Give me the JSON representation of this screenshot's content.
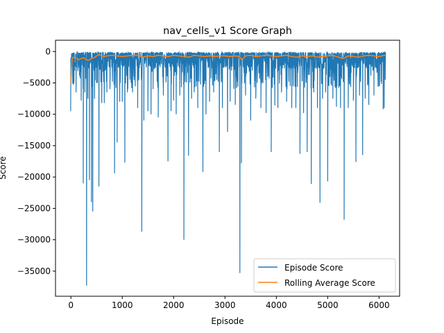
{
  "chart_data": {
    "type": "line",
    "title": "nav_cells_v1 Score Graph",
    "xlabel": "Episode",
    "ylabel": "Score",
    "xlim": [
      -300,
      6400
    ],
    "ylim": [
      -39000,
      1800
    ],
    "xticks": [
      0,
      1000,
      2000,
      3000,
      4000,
      5000,
      6000
    ],
    "yticks": [
      0,
      -5000,
      -10000,
      -15000,
      -20000,
      -25000,
      -30000,
      -35000
    ],
    "grid": false,
    "legend_position": "lower-right",
    "episode_count": 6130,
    "series": [
      {
        "name": "Episode Score",
        "color": "#1f77b4",
        "baseline": -100,
        "typical_low": -5500,
        "spikes": [
          [
            -5,
            -9500
          ],
          [
            60,
            -5000
          ],
          [
            100,
            -6500
          ],
          [
            150,
            -2000
          ],
          [
            200,
            -7800
          ],
          [
            240,
            -21000
          ],
          [
            270,
            -6500
          ],
          [
            305,
            -37300
          ],
          [
            330,
            -7500
          ],
          [
            360,
            -20500
          ],
          [
            400,
            -24000
          ],
          [
            425,
            -25500
          ],
          [
            460,
            -7500
          ],
          [
            500,
            -5000
          ],
          [
            545,
            -21500
          ],
          [
            600,
            -8200
          ],
          [
            650,
            -8200
          ],
          [
            700,
            -6500
          ],
          [
            760,
            -6000
          ],
          [
            850,
            -19400
          ],
          [
            900,
            -14500
          ],
          [
            950,
            -8000
          ],
          [
            1000,
            -8000
          ],
          [
            1050,
            -17700
          ],
          [
            1100,
            -6500
          ],
          [
            1200,
            -6500
          ],
          [
            1300,
            -9000
          ],
          [
            1380,
            -28700
          ],
          [
            1420,
            -11000
          ],
          [
            1500,
            -9500
          ],
          [
            1560,
            -10000
          ],
          [
            1600,
            -6000
          ],
          [
            1700,
            -10500
          ],
          [
            1800,
            -7000
          ],
          [
            1890,
            -17500
          ],
          [
            1950,
            -9500
          ],
          [
            2000,
            -7800
          ],
          [
            2050,
            -10000
          ],
          [
            2120,
            -7000
          ],
          [
            2200,
            -30000
          ],
          [
            2290,
            -16600
          ],
          [
            2350,
            -7500
          ],
          [
            2400,
            -6500
          ],
          [
            2470,
            -9000
          ],
          [
            2570,
            -19200
          ],
          [
            2630,
            -10000
          ],
          [
            2700,
            -8000
          ],
          [
            2780,
            -6500
          ],
          [
            2890,
            -16000
          ],
          [
            2950,
            -9000
          ],
          [
            3050,
            -12800
          ],
          [
            3100,
            -8000
          ],
          [
            3200,
            -8500
          ],
          [
            3290,
            -35300
          ],
          [
            3320,
            -17800
          ],
          [
            3400,
            -7000
          ],
          [
            3500,
            -11000
          ],
          [
            3600,
            -7500
          ],
          [
            3700,
            -9000
          ],
          [
            3800,
            -9800
          ],
          [
            3900,
            -16000
          ],
          [
            3970,
            -8600
          ],
          [
            4030,
            -9000
          ],
          [
            4100,
            -6500
          ],
          [
            4200,
            -8000
          ],
          [
            4300,
            -9000
          ],
          [
            4380,
            -9000
          ],
          [
            4460,
            -16300
          ],
          [
            4530,
            -9800
          ],
          [
            4600,
            -16000
          ],
          [
            4680,
            -21100
          ],
          [
            4730,
            -6500
          ],
          [
            4800,
            -9000
          ],
          [
            4850,
            -24100
          ],
          [
            4900,
            -7500
          ],
          [
            4960,
            -6500
          ],
          [
            5000,
            -20700
          ],
          [
            5100,
            -7500
          ],
          [
            5170,
            -8800
          ],
          [
            5250,
            -9000
          ],
          [
            5320,
            -26800
          ],
          [
            5400,
            -9000
          ],
          [
            5500,
            -7800
          ],
          [
            5550,
            -17600
          ],
          [
            5620,
            -7000
          ],
          [
            5680,
            -16500
          ],
          [
            5730,
            -7500
          ],
          [
            5800,
            -8500
          ],
          [
            5900,
            -7000
          ],
          [
            6000,
            -5500
          ],
          [
            6080,
            -9200
          ],
          [
            6100,
            -9000
          ],
          [
            6120,
            -4500
          ]
        ]
      },
      {
        "name": "Rolling Average Score",
        "color": "#ff7f0e",
        "x": [
          0,
          10,
          25,
          50,
          100,
          150,
          200,
          250,
          300,
          350,
          400,
          450,
          500,
          550,
          600,
          650,
          700,
          800,
          900,
          1000,
          1100,
          1200,
          1300,
          1400,
          1500,
          1600,
          1700,
          1800,
          1900,
          2000,
          2100,
          2200,
          2300,
          2400,
          2500,
          2600,
          2700,
          2800,
          2900,
          3000,
          3100,
          3200,
          3280,
          3330,
          3400,
          3500,
          3600,
          3700,
          3800,
          3900,
          4000,
          4100,
          4200,
          4300,
          4400,
          4500,
          4600,
          4700,
          4800,
          4900,
          5000,
          5100,
          5200,
          5300,
          5400,
          5500,
          5600,
          5700,
          5800,
          5900,
          6000,
          6100,
          6130
        ],
        "values": [
          -5000,
          -2800,
          -1000,
          -900,
          -1000,
          -1300,
          -1100,
          -1000,
          -1300,
          -1400,
          -1100,
          -1000,
          -700,
          -500,
          -700,
          -800,
          -700,
          -600,
          -700,
          -800,
          -700,
          -600,
          -600,
          -900,
          -700,
          -800,
          -600,
          -700,
          -800,
          -600,
          -700,
          -800,
          -900,
          -600,
          -700,
          -800,
          -700,
          -800,
          -700,
          -700,
          -800,
          -700,
          -800,
          -1300,
          -700,
          -600,
          -800,
          -700,
          -600,
          -700,
          -800,
          -700,
          -600,
          -800,
          -900,
          -700,
          -800,
          -700,
          -900,
          -800,
          -700,
          -600,
          -900,
          -1100,
          -700,
          -800,
          -900,
          -700,
          -600,
          -700,
          -800,
          -600,
          -600
        ]
      }
    ]
  }
}
